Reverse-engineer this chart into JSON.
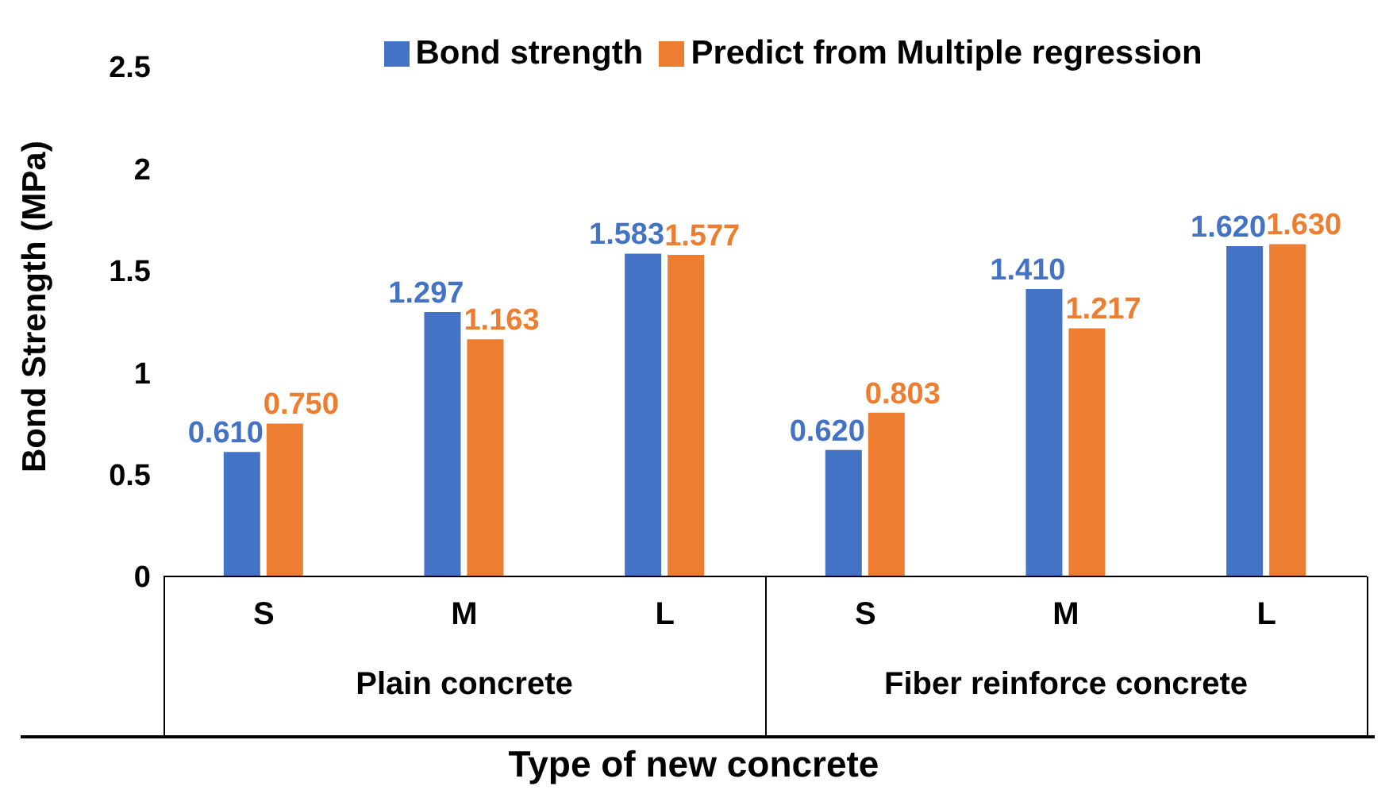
{
  "chart_data": {
    "type": "bar",
    "xlabel": "Type of new concrete",
    "ylabel": "Bond Strength (MPa)",
    "categories": [
      "S",
      "M",
      "L",
      "S",
      "M",
      "L"
    ],
    "series": [
      {
        "name": "Bond strength",
        "color": "#4472c4",
        "values": [
          0.61,
          1.297,
          1.583,
          0.62,
          1.41,
          1.62
        ],
        "value_labels": [
          "0.610",
          "1.297",
          "1.583",
          "0.620",
          "1.410",
          "1.620"
        ]
      },
      {
        "name": "Predict from Multiple regression",
        "color": "#ed7d31",
        "values": [
          0.75,
          1.163,
          1.577,
          0.803,
          1.217,
          1.63
        ],
        "value_labels": [
          "0.750",
          "1.163",
          "1.577",
          "0.803",
          "1.217",
          "1.630"
        ]
      }
    ],
    "annotations": [
      "Plain concrete",
      "Fiber reinforce concrete"
    ],
    "ylim": [
      0,
      2.5
    ],
    "yticks": [
      0,
      0.5,
      1,
      1.5,
      2,
      2.5
    ],
    "grid": false,
    "legend": "top"
  }
}
